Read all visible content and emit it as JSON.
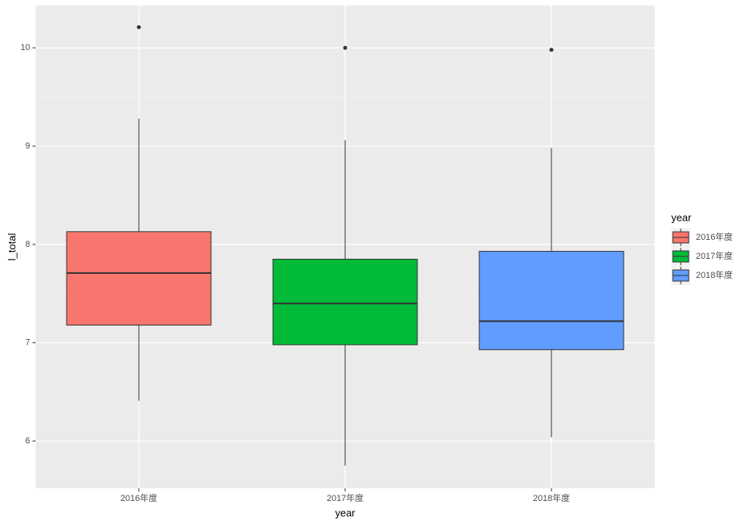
{
  "chart_data": {
    "type": "boxplot",
    "x_label": "year",
    "y_label": "l_total",
    "categories": [
      "2016年度",
      "2017年度",
      "2018年度"
    ],
    "colors": [
      "#F8766D",
      "#00BA38",
      "#619CFF"
    ],
    "boxes": [
      {
        "min": 6.41,
        "q1": 7.18,
        "median": 7.71,
        "q3": 8.13,
        "max": 9.28,
        "outliers": [
          10.21
        ]
      },
      {
        "min": 5.75,
        "q1": 6.98,
        "median": 7.4,
        "q3": 7.85,
        "max": 9.06,
        "outliers": [
          10.0
        ]
      },
      {
        "min": 6.04,
        "q1": 6.93,
        "median": 7.22,
        "q3": 7.93,
        "max": 8.98,
        "outliers": [
          9.98
        ]
      }
    ],
    "ylim": [
      5.52,
      10.43
    ],
    "yticks": [
      6,
      7,
      8,
      9,
      10
    ],
    "y_minor_ticks": [
      6.5,
      7.5,
      8.5,
      9.5
    ],
    "grid": true,
    "legend_title": "year",
    "legend_position": "right"
  }
}
